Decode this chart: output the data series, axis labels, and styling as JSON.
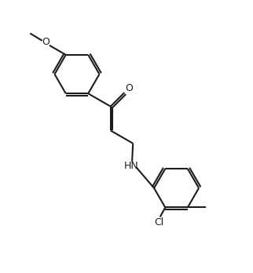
{
  "background": "#ffffff",
  "lc": "#1c1c1c",
  "lw": 1.5,
  "fs": 9.0,
  "figsize": [
    3.22,
    3.48
  ],
  "dpi": 100,
  "xlim": [
    0.2,
    5.8
  ],
  "ylim": [
    -0.5,
    5.8
  ]
}
